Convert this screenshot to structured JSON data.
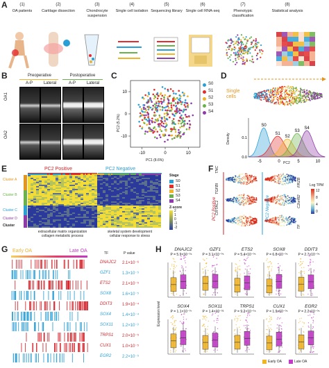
{
  "panelA": {
    "label": "A",
    "steps": [
      {
        "n": "(1)",
        "text": "OA patients"
      },
      {
        "n": "(2)",
        "text": "Cartilage dissection"
      },
      {
        "n": "(3)",
        "text": "Chondrocyte suspension"
      },
      {
        "n": "(4)",
        "text": "Single cell isolation"
      },
      {
        "n": "(5)",
        "text": "Sequencing library"
      },
      {
        "n": "(6)",
        "text": "Single cell RNA-seq"
      },
      {
        "n": "(7)",
        "text": "Phenotypic classification"
      },
      {
        "n": "(8)",
        "text": "Statistical analysis"
      }
    ]
  },
  "panelB": {
    "label": "B",
    "pre": "Preoperative",
    "post": "Postoperative",
    "ap": "A-P",
    "lateral": "Lateral",
    "rows": [
      "OA1",
      "OA2"
    ]
  },
  "panelC": {
    "label": "C",
    "xlabel": "PC1 (8.6%)",
    "ylabel": "PC2 (5.2%)",
    "xticks": [
      "-10",
      "0",
      "10"
    ],
    "yticks": [
      "10",
      "0",
      "-10"
    ],
    "legend": [
      {
        "name": "S0",
        "color": "#2a9fd6"
      },
      {
        "name": "S1",
        "color": "#e32d2d"
      },
      {
        "name": "S2",
        "color": "#f0b429"
      },
      {
        "name": "S3",
        "color": "#6bb14a"
      },
      {
        "name": "S4",
        "color": "#8e3aa8"
      }
    ]
  },
  "panelD": {
    "label": "D",
    "single_cells": "Single cells",
    "ylabel": "Density",
    "xlabel": "PC2",
    "xticks": [
      "-5",
      "0",
      "5",
      "10"
    ],
    "yticks": [
      "0.0",
      "0.1"
    ],
    "peaks": [
      "S0",
      "S1",
      "S2",
      "S3",
      "S4"
    ]
  },
  "panelE": {
    "label": "E",
    "pos": "PC2 Positive",
    "neg": "PC2 Negative",
    "clusters": [
      "Cluster A",
      "Cluster B",
      "Cluster C",
      "Cluster D"
    ],
    "cluster_title": "Cluster",
    "stage_title": "Stage",
    "stages": [
      "S0",
      "S1",
      "S2",
      "S3",
      "S4"
    ],
    "zscore_title": "Z-score",
    "zscore_ticks": [
      "2",
      "1",
      "0",
      "-1",
      "-2"
    ],
    "go_pos_1": "extracellular matrix organization",
    "go_pos_2": "collagen metabolic process",
    "go_neg_1": "skeletal system development",
    "go_neg_2": "cellular response to stress"
  },
  "panelF": {
    "label": "F",
    "pos_genes": [
      "TNC",
      "TGFBI",
      "CRTAC1"
    ],
    "neg_genes": [
      "FRZB",
      "C2orf82",
      "TF"
    ],
    "pos_title": "PC2 Positive",
    "neg_title": "PC2 Negative",
    "scale_title": "Log TPM",
    "scale_ticks": [
      "12",
      "8",
      "4",
      "0"
    ]
  },
  "panelG": {
    "label": "G",
    "early": "Early OA",
    "late": "Late OA",
    "tf_header": "TF",
    "p_header": "P value",
    "rows": [
      {
        "tf": "DNAJC2",
        "p": "2.1×10⁻⁶"
      },
      {
        "tf": "GZF1",
        "p": "1.3×10⁻⁵"
      },
      {
        "tf": "ETS2",
        "p": "2.1×10⁻⁵"
      },
      {
        "tf": "SOX8",
        "p": "1.6×10⁻⁵"
      },
      {
        "tf": "DDIT3",
        "p": "1.9×10⁻⁴"
      },
      {
        "tf": "SOX4",
        "p": "1.4×10⁻⁴"
      },
      {
        "tf": "SOX11",
        "p": "1.2×10⁻³"
      },
      {
        "tf": "TRPS1",
        "p": "2.0×10⁻⁵"
      },
      {
        "tf": "CUX1",
        "p": "1.0×10⁻⁵"
      },
      {
        "tf": "EGR2",
        "p": "2.2×10⁻⁵"
      }
    ]
  },
  "panelH": {
    "label": "H",
    "ylabel": "Expression level",
    "legend_early": "Early OA",
    "legend_late": "Late OA",
    "row1": [
      {
        "gene": "DNAJC2",
        "p": "P = 5.9×10⁻⁰⁶"
      },
      {
        "gene": "GZF1",
        "p": "P = 3.1×10⁻⁰⁵"
      },
      {
        "gene": "ETS2",
        "p": "P = 5.4×10⁻⁰⁵"
      },
      {
        "gene": "SOX8",
        "p": "P = 6.8×10⁻⁰⁵"
      },
      {
        "gene": "DDIT3",
        "p": "P = 2.7×10⁻⁰⁵"
      }
    ],
    "row2": [
      {
        "gene": "SOX4",
        "p": "P = 1.1×10⁻⁰⁷"
      },
      {
        "gene": "SOX11",
        "p": "P = 1.4×10⁻⁰³"
      },
      {
        "gene": "TRPS1",
        "p": "P = 9.2×10⁻⁰⁸"
      },
      {
        "gene": "CUX1",
        "p": "P = 1.9×10⁻⁰⁵"
      },
      {
        "gene": "EGR2",
        "p": "P = 2.2×10⁻⁰⁵"
      }
    ],
    "colors": {
      "early": "#f0b429",
      "late": "#c23bc6"
    }
  }
}
